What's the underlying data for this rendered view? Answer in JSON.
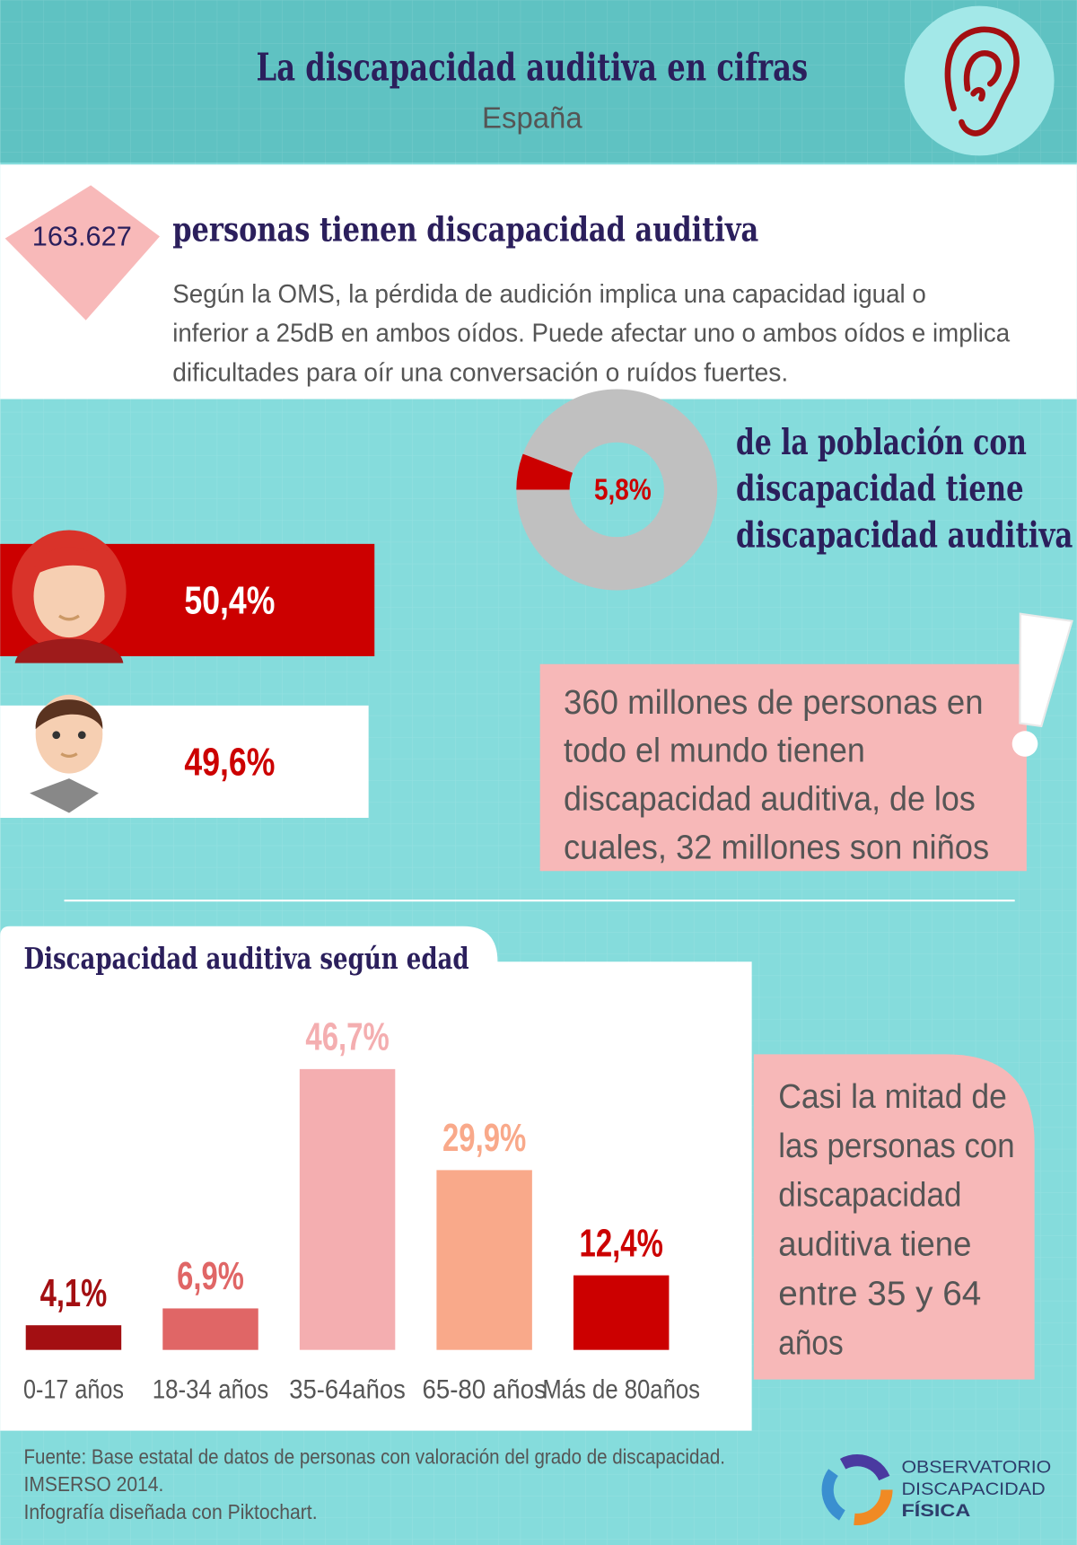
{
  "header": {
    "title": "La discapacidad auditiva en cifras",
    "subtitle": "España"
  },
  "highlight": {
    "number": "163.627",
    "headline": "personas tienen discapacidad auditiva",
    "paragraph": [
      "Según la OMS, la pérdida de audición implica una capacidad igual o",
      "inferior a 25dB en ambos oídos. Puede afectar uno o ambos oídos e implica",
      "dificultades para oír una conversación o ruídos fuertes."
    ]
  },
  "chart_data": [
    {
      "type": "pie",
      "values": [
        5.8
      ],
      "value_labels": [
        "5,8%"
      ],
      "color": "#cc0000",
      "rest_color": "#c0c0c0",
      "caption": [
        "de la población con",
        "discapacidad tiene",
        "discapacidad auditiva"
      ]
    },
    {
      "type": "hbar",
      "values": [
        50.4,
        49.6
      ],
      "value_labels": [
        "50,4%",
        "49,6%"
      ],
      "colors": [
        "#cc0000",
        "#ffffff"
      ],
      "label_colors": [
        "#ffffff",
        "#cc0000"
      ]
    },
    {
      "type": "bar",
      "title": "Discapacidad auditiva según edad",
      "categories": [
        "0-17 años",
        "18-34 años",
        "35-64años",
        "65-80 años",
        "Más de 80años"
      ],
      "values": [
        4.1,
        6.9,
        46.7,
        29.9,
        12.4
      ],
      "value_labels": [
        "4,1%",
        "6,9%",
        "46,7%",
        "29,9%",
        "12,4%"
      ],
      "colors": [
        "#a30f12",
        "#e06666",
        "#f4aeb0",
        "#f9a98a",
        "#cc0000"
      ]
    }
  ],
  "callouts": {
    "world": [
      "360 millones de personas en",
      "todo el mundo tienen",
      "discapacidad auditiva, de los",
      "cuales, 32 millones son niños"
    ],
    "age": [
      "Casi la mitad de",
      "las personas con",
      "discapacidad",
      "auditiva tiene",
      "entre 35 y 64",
      "años"
    ]
  },
  "footer": {
    "source": [
      "Fuente: Base estatal de datos de personas con valoración del grado de discapacidad.",
      "IMSERSO 2014.",
      "Infografía diseñada con Piktochart."
    ],
    "logo": [
      "OBSERVATORIO",
      "DISCAPACIDAD",
      "FÍSICA"
    ]
  }
}
